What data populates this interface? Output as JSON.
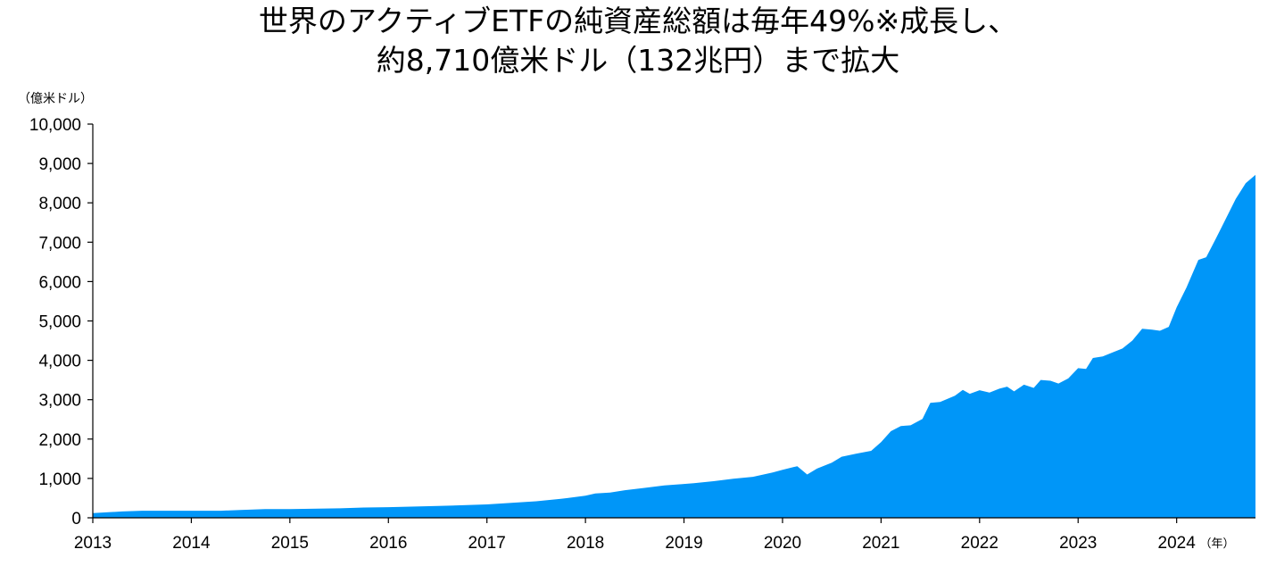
{
  "title": {
    "line1": "世界のアクティブETFの純資産総額は毎年49%※成長し、",
    "line2": "約8,710億米ドル（132兆円）まで拡大"
  },
  "colors": {
    "area": "#0096f8",
    "axis": "#000000"
  },
  "chart_data": {
    "type": "area",
    "title": "世界のアクティブETFの純資産総額は毎年49%※成長し、約8,710億米ドル（132兆円）まで拡大",
    "ylabel": "（億米ドル）",
    "xlabel_unit": "（年）",
    "ylim": [
      0,
      10000
    ],
    "y_ticks": [
      "0",
      "1,000",
      "2,000",
      "3,000",
      "4,000",
      "5,000",
      "6,000",
      "7,000",
      "8,000",
      "9,000",
      "10,000"
    ],
    "x_ticks": [
      "2013",
      "2014",
      "2015",
      "2016",
      "2017",
      "2018",
      "2019",
      "2020",
      "2021",
      "2022",
      "2023",
      "2024"
    ],
    "xlim": [
      2013.0,
      2024.8
    ],
    "grid": false,
    "series": [
      {
        "x": [
          2013.0,
          2013.3,
          2013.5,
          2014.0,
          2014.3,
          2014.5,
          2014.75,
          2015.0,
          2015.5,
          2015.75,
          2016.0,
          2016.5,
          2017.0,
          2017.5,
          2017.75,
          2018.0,
          2018.1,
          2018.25,
          2018.4,
          2018.6,
          2018.8,
          2019.0,
          2019.1,
          2019.3,
          2019.5,
          2019.7,
          2019.9,
          2020.0,
          2020.15,
          2020.25,
          2020.35,
          2020.5,
          2020.6,
          2020.75,
          2020.9,
          2021.0,
          2021.1,
          2021.2,
          2021.3,
          2021.42,
          2021.5,
          2021.6,
          2021.75,
          2021.83,
          2021.9,
          2022.0,
          2022.1,
          2022.2,
          2022.28,
          2022.35,
          2022.45,
          2022.55,
          2022.62,
          2022.72,
          2022.8,
          2022.9,
          2023.0,
          2023.08,
          2023.15,
          2023.25,
          2023.35,
          2023.45,
          2023.55,
          2023.65,
          2023.75,
          2023.83,
          2023.92,
          2024.0,
          2024.1,
          2024.22,
          2024.3,
          2024.4,
          2024.5,
          2024.6,
          2024.7,
          2024.8
        ],
        "values": [
          120,
          160,
          180,
          180,
          180,
          200,
          220,
          220,
          240,
          260,
          270,
          300,
          340,
          420,
          480,
          560,
          620,
          640,
          700,
          760,
          820,
          860,
          880,
          930,
          990,
          1040,
          1150,
          1220,
          1310,
          1100,
          1250,
          1400,
          1550,
          1630,
          1700,
          1920,
          2200,
          2330,
          2350,
          2510,
          2920,
          2940,
          3100,
          3250,
          3150,
          3240,
          3180,
          3280,
          3330,
          3210,
          3380,
          3300,
          3500,
          3480,
          3410,
          3540,
          3800,
          3780,
          4060,
          4100,
          4200,
          4300,
          4500,
          4800,
          4780,
          4750,
          4850,
          5350,
          5850,
          6550,
          6620,
          7100,
          7600,
          8100,
          8500,
          8710
        ]
      }
    ]
  }
}
